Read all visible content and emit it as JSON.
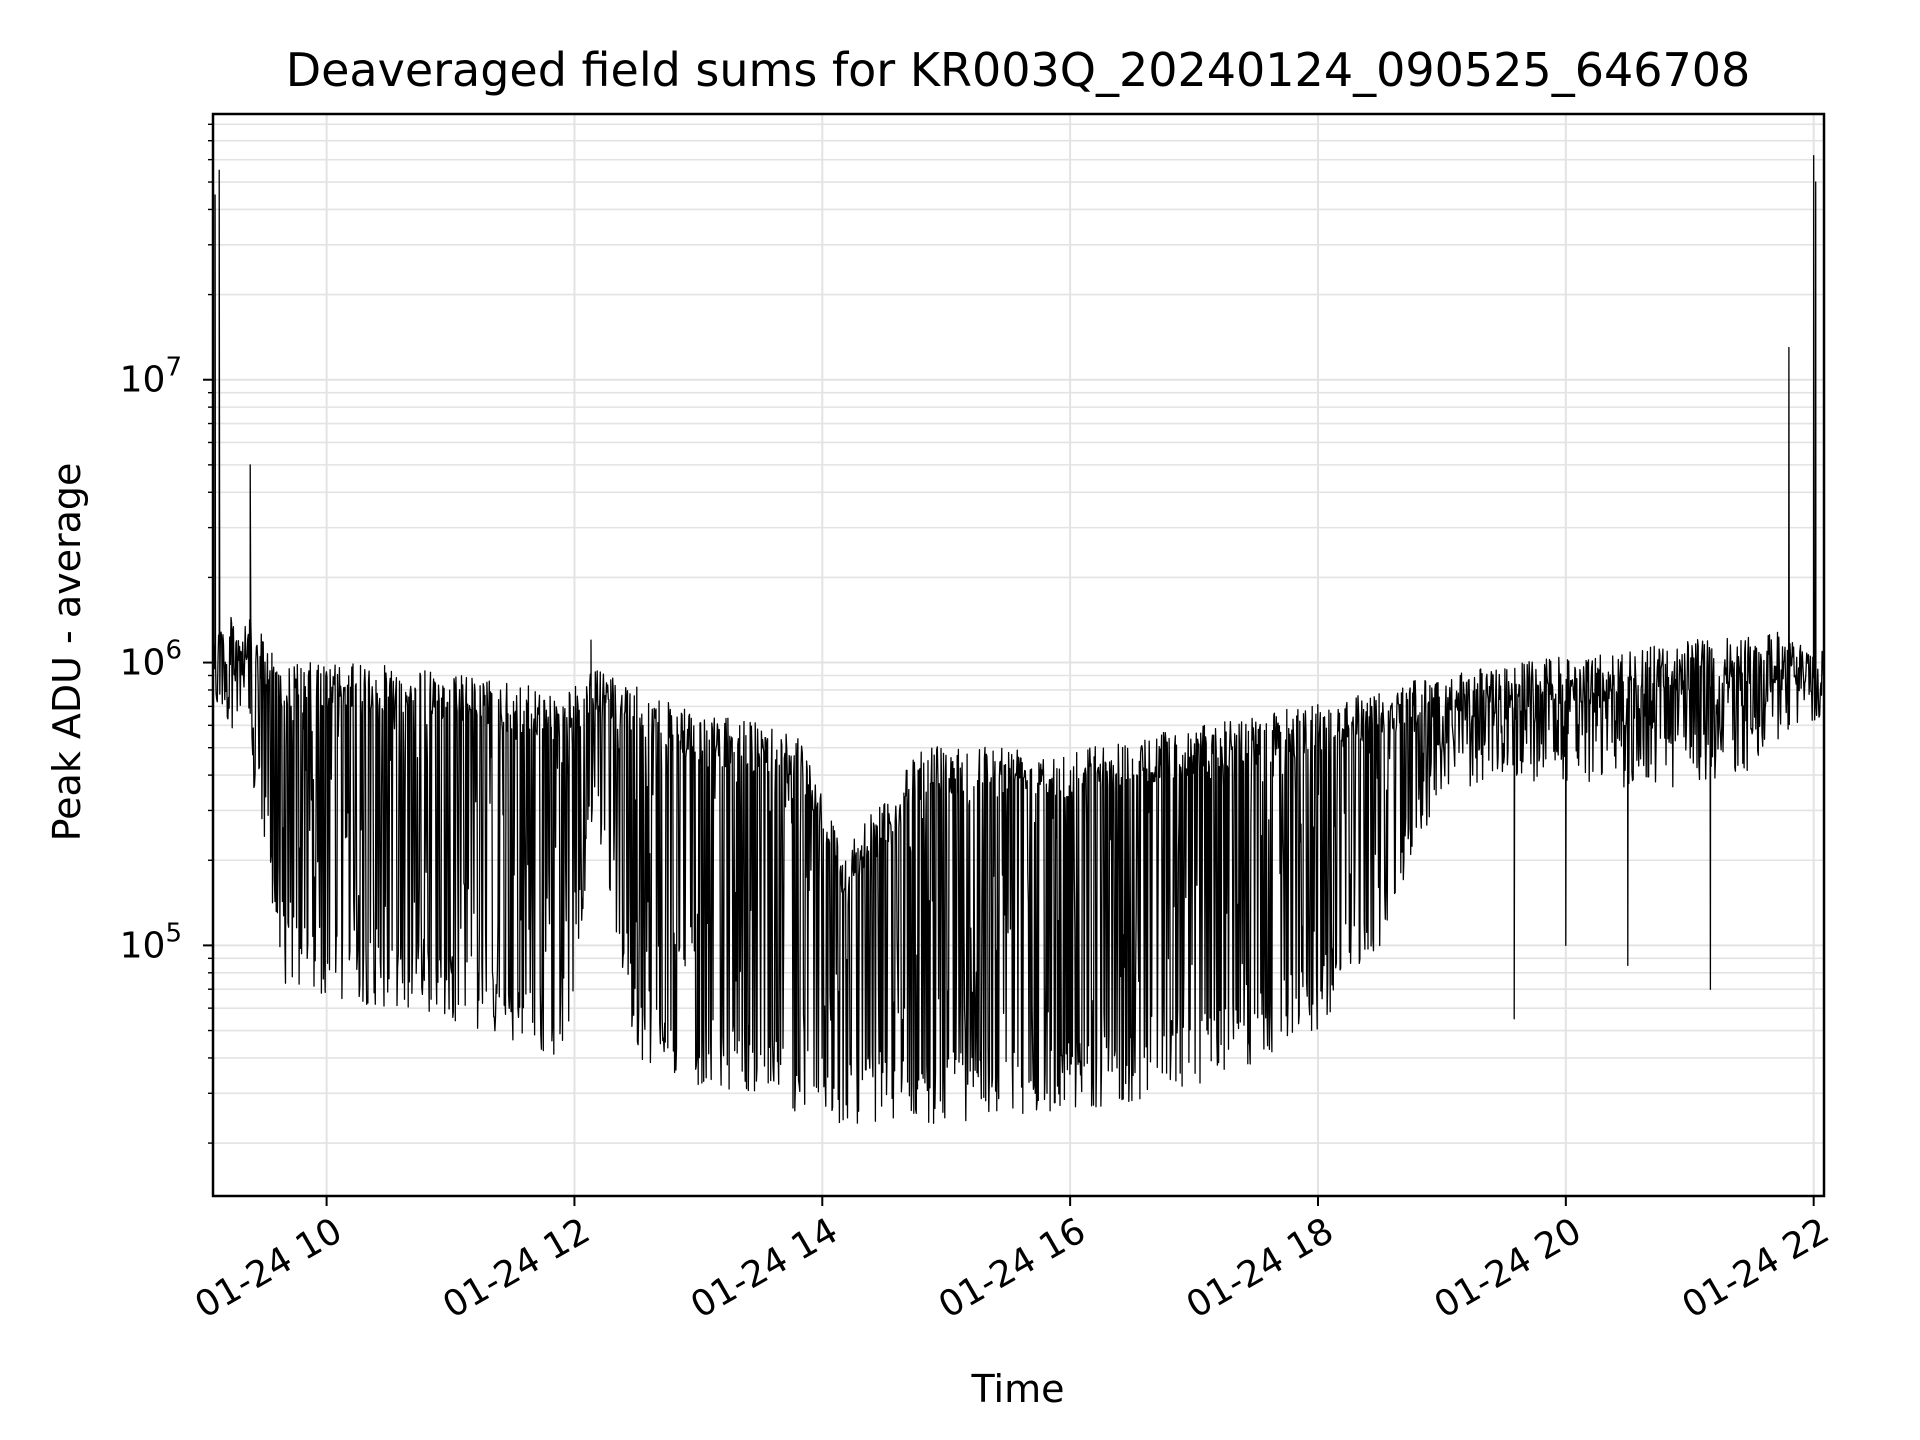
{
  "chart_data": {
    "type": "line",
    "title": "Deaveraged field sums for KR003Q_20240124_090525_646708",
    "xlabel": "Time",
    "ylabel": "Peak ADU - average",
    "yscale": "log",
    "xlim": [
      "2024-01-24 09:05",
      "2024-01-24 22:05"
    ],
    "ylim": [
      13000,
      87000000
    ],
    "grid": true,
    "line_color": "#000000",
    "x_ticks": [
      {
        "value": "2024-01-24 10:00",
        "label": "01-24 10"
      },
      {
        "value": "2024-01-24 12:00",
        "label": "01-24 12"
      },
      {
        "value": "2024-01-24 14:00",
        "label": "01-24 14"
      },
      {
        "value": "2024-01-24 16:00",
        "label": "01-24 16"
      },
      {
        "value": "2024-01-24 18:00",
        "label": "01-24 18"
      },
      {
        "value": "2024-01-24 20:00",
        "label": "01-24 20"
      },
      {
        "value": "2024-01-24 22:00",
        "label": "01-24 22"
      }
    ],
    "y_ticks": [
      {
        "value": 100000,
        "base": "10",
        "exp": "5"
      },
      {
        "value": 1000000,
        "base": "10",
        "exp": "6"
      },
      {
        "value": 10000000,
        "base": "10",
        "exp": "7"
      }
    ],
    "series": [
      {
        "envelope": {
          "times": [
            "2024-01-24 09:05",
            "2024-01-24 09:20",
            "2024-01-24 09:40",
            "2024-01-24 10:00",
            "2024-01-24 10:30",
            "2024-01-24 11:00",
            "2024-01-24 11:30",
            "2024-01-24 11:55",
            "2024-01-24 12:10",
            "2024-01-24 12:30",
            "2024-01-24 13:00",
            "2024-01-24 13:30",
            "2024-01-24 13:50",
            "2024-01-24 14:10",
            "2024-01-24 14:30",
            "2024-01-24 14:50",
            "2024-01-24 15:10",
            "2024-01-24 15:30",
            "2024-01-24 16:00",
            "2024-01-24 16:30",
            "2024-01-24 17:00",
            "2024-01-24 17:30",
            "2024-01-24 18:00",
            "2024-01-24 18:30",
            "2024-01-24 19:00",
            "2024-01-24 19:30",
            "2024-01-24 20:00",
            "2024-01-24 20:30",
            "2024-01-24 21:00",
            "2024-01-24 21:30",
            "2024-01-24 21:50",
            "2024-01-24 22:05"
          ],
          "upper": [
            1400000,
            1500000,
            1000000,
            1000000,
            980000,
            920000,
            850000,
            780000,
            950000,
            820000,
            650000,
            620000,
            560000,
            220000,
            330000,
            520000,
            520000,
            520000,
            500000,
            540000,
            600000,
            650000,
            720000,
            820000,
            900000,
            1000000,
            1050000,
            1100000,
            1200000,
            1250000,
            1300000,
            1000000
          ],
          "lower": [
            650000,
            550000,
            70000,
            65000,
            60000,
            55000,
            45000,
            38000,
            300000,
            40000,
            32000,
            30000,
            25000,
            23000,
            24000,
            23000,
            24000,
            25000,
            26000,
            28000,
            32000,
            38000,
            50000,
            100000,
            350000,
            380000,
            380000,
            360000,
            350000,
            420000,
            550000,
            650000
          ]
        },
        "spikes": [
          {
            "time": "2024-01-24 09:06",
            "value": 45000000
          },
          {
            "time": "2024-01-24 09:08",
            "value": 55000000
          },
          {
            "time": "2024-01-24 09:23",
            "value": 5000000
          },
          {
            "time": "2024-01-24 12:08",
            "value": 1200000
          },
          {
            "time": "2024-01-24 21:48",
            "value": 13000000
          },
          {
            "time": "2024-01-24 22:00",
            "value": 62000000
          },
          {
            "time": "2024-01-24 22:01",
            "value": 50000000
          },
          {
            "time": "2024-01-24 21:10",
            "value": 70000
          },
          {
            "time": "2024-01-24 20:30",
            "value": 85000
          },
          {
            "time": "2024-01-24 19:35",
            "value": 55000
          },
          {
            "time": "2024-01-24 20:00",
            "value": 100000
          }
        ]
      }
    ]
  }
}
